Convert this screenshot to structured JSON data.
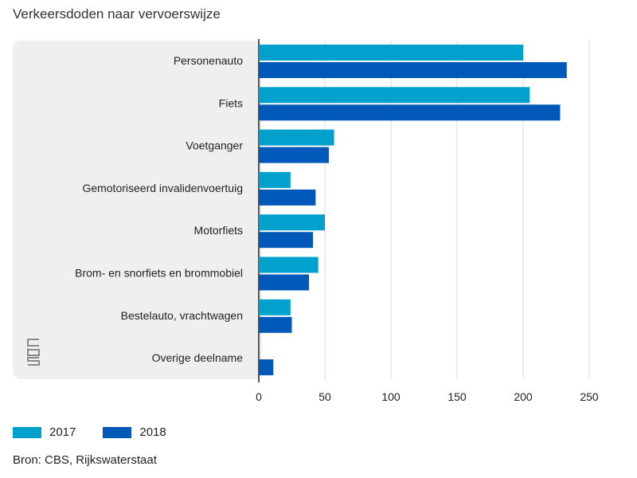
{
  "title": "Verkeersdoden naar vervoerswijze",
  "source": "Bron: CBS, Rijkswaterstaat",
  "logo_text": "cbs",
  "colors": {
    "2017": "#00a1cd",
    "2018": "#0058b8",
    "panel": "#efefef",
    "grid": "#d9d9d9",
    "axis": "#555555"
  },
  "chart_data": {
    "type": "bar",
    "orientation": "horizontal",
    "title": "Verkeersdoden naar vervoerswijze",
    "xlabel": "",
    "ylabel": "",
    "xlim": [
      0,
      250
    ],
    "xticks": [
      0,
      50,
      100,
      150,
      200,
      250
    ],
    "grid": true,
    "legend_position": "bottom-left",
    "categories": [
      "Personenauto",
      "Fiets",
      "Voetganger",
      "Gemotoriseerd invalidenvoertuig",
      "Motorfiets",
      "Brom- en snorfiets en brommobiel",
      "Bestelauto, vrachtwagen",
      "Overige deelname"
    ],
    "series": [
      {
        "name": "2017",
        "values": [
          200,
          205,
          57,
          24,
          50,
          45,
          24,
          0
        ]
      },
      {
        "name": "2018",
        "values": [
          233,
          228,
          53,
          43,
          41,
          38,
          25,
          11
        ]
      }
    ]
  }
}
